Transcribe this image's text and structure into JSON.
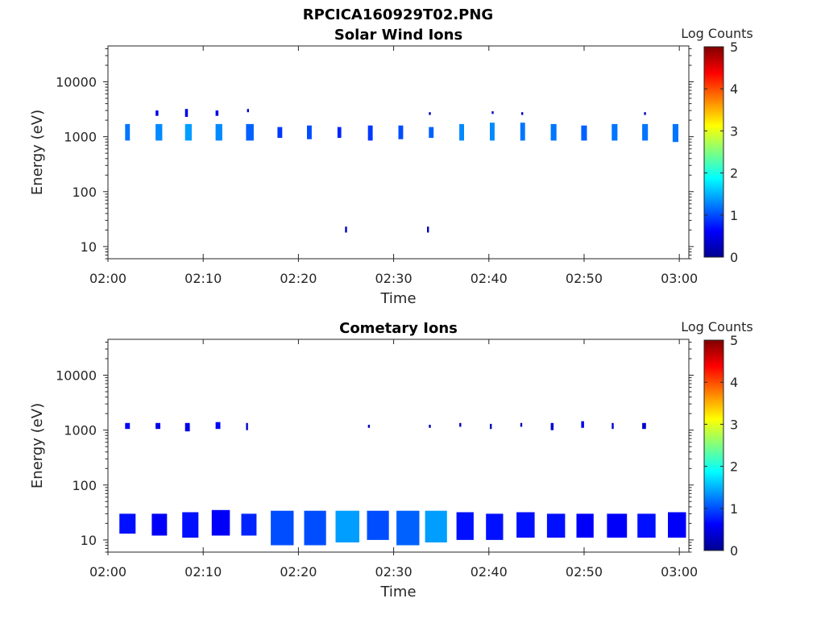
{
  "figure_title": "RPCICA160929T02.PNG",
  "chart_data": [
    {
      "type": "heatmap",
      "title": "Solar Wind Ions",
      "xlabel": "Time",
      "ylabel": "Energy (eV)",
      "x_ticks": [
        "02:00",
        "02:10",
        "02:20",
        "02:30",
        "02:40",
        "02:50",
        "03:00"
      ],
      "y_ticks": [
        "10",
        "100",
        "1000",
        "10000"
      ],
      "y_scale": "log",
      "xlim_minutes": [
        0,
        61
      ],
      "ylim": [
        6,
        45000
      ],
      "colorbar": {
        "label": "Log Counts",
        "ticks": [
          "0",
          "1",
          "2",
          "3",
          "4",
          "5"
        ],
        "range": [
          0,
          5
        ]
      },
      "cells": [
        {
          "t": 1.8,
          "dt": 0.5,
          "e0": 850,
          "e1": 1700,
          "v": 1.2
        },
        {
          "t": 5.0,
          "dt": 0.7,
          "e0": 850,
          "e1": 1700,
          "v": 1.3
        },
        {
          "t": 5.0,
          "dt": 0.3,
          "e0": 2400,
          "e1": 3000,
          "v": 0.5
        },
        {
          "t": 8.1,
          "dt": 0.7,
          "e0": 850,
          "e1": 1700,
          "v": 1.4
        },
        {
          "t": 8.1,
          "dt": 0.3,
          "e0": 2300,
          "e1": 3200,
          "v": 0.5
        },
        {
          "t": 11.3,
          "dt": 0.7,
          "e0": 850,
          "e1": 1700,
          "v": 1.3
        },
        {
          "t": 11.3,
          "dt": 0.3,
          "e0": 2400,
          "e1": 3000,
          "v": 0.5
        },
        {
          "t": 14.5,
          "dt": 0.8,
          "e0": 850,
          "e1": 1700,
          "v": 1.1
        },
        {
          "t": 14.6,
          "dt": 0.2,
          "e0": 2800,
          "e1": 3200,
          "v": 0.3
        },
        {
          "t": 17.8,
          "dt": 0.5,
          "e0": 950,
          "e1": 1500,
          "v": 0.9
        },
        {
          "t": 20.9,
          "dt": 0.5,
          "e0": 900,
          "e1": 1600,
          "v": 1.0
        },
        {
          "t": 24.1,
          "dt": 0.4,
          "e0": 950,
          "e1": 1500,
          "v": 0.8
        },
        {
          "t": 27.3,
          "dt": 0.5,
          "e0": 850,
          "e1": 1600,
          "v": 0.9
        },
        {
          "t": 30.5,
          "dt": 0.5,
          "e0": 900,
          "e1": 1600,
          "v": 1.0
        },
        {
          "t": 33.7,
          "dt": 0.5,
          "e0": 950,
          "e1": 1500,
          "v": 1.1
        },
        {
          "t": 33.7,
          "dt": 0.2,
          "e0": 2500,
          "e1": 2800,
          "v": 0.3
        },
        {
          "t": 36.9,
          "dt": 0.5,
          "e0": 850,
          "e1": 1700,
          "v": 1.3
        },
        {
          "t": 40.1,
          "dt": 0.5,
          "e0": 850,
          "e1": 1800,
          "v": 1.3
        },
        {
          "t": 40.3,
          "dt": 0.2,
          "e0": 2600,
          "e1": 2900,
          "v": 0.3
        },
        {
          "t": 43.3,
          "dt": 0.5,
          "e0": 850,
          "e1": 1800,
          "v": 1.2
        },
        {
          "t": 43.4,
          "dt": 0.2,
          "e0": 2500,
          "e1": 2800,
          "v": 0.3
        },
        {
          "t": 46.5,
          "dt": 0.6,
          "e0": 850,
          "e1": 1700,
          "v": 1.2
        },
        {
          "t": 49.7,
          "dt": 0.6,
          "e0": 850,
          "e1": 1600,
          "v": 1.1
        },
        {
          "t": 52.9,
          "dt": 0.6,
          "e0": 850,
          "e1": 1700,
          "v": 1.2
        },
        {
          "t": 56.1,
          "dt": 0.6,
          "e0": 850,
          "e1": 1700,
          "v": 1.2
        },
        {
          "t": 56.3,
          "dt": 0.2,
          "e0": 2500,
          "e1": 2800,
          "v": 0.3
        },
        {
          "t": 59.3,
          "dt": 0.6,
          "e0": 800,
          "e1": 1700,
          "v": 1.2
        },
        {
          "t": 24.9,
          "dt": 0.2,
          "e0": 18,
          "e1": 23,
          "v": 0.3
        },
        {
          "t": 33.5,
          "dt": 0.2,
          "e0": 18,
          "e1": 23,
          "v": 0.3
        }
      ]
    },
    {
      "type": "heatmap",
      "title": "Cometary Ions",
      "xlabel": "Time",
      "ylabel": "Energy (eV)",
      "x_ticks": [
        "02:00",
        "02:10",
        "02:20",
        "02:30",
        "02:40",
        "02:50",
        "03:00"
      ],
      "y_ticks": [
        "10",
        "100",
        "1000",
        "10000"
      ],
      "y_scale": "log",
      "xlim_minutes": [
        0,
        61
      ],
      "ylim": [
        6,
        45000
      ],
      "colorbar": {
        "label": "Log Counts",
        "ticks": [
          "0",
          "1",
          "2",
          "3",
          "4",
          "5"
        ],
        "range": [
          0,
          5
        ]
      },
      "cells": [
        {
          "t": 1.8,
          "dt": 0.5,
          "e0": 1050,
          "e1": 1350,
          "v": 0.6
        },
        {
          "t": 5.0,
          "dt": 0.5,
          "e0": 1050,
          "e1": 1350,
          "v": 0.5
        },
        {
          "t": 8.1,
          "dt": 0.5,
          "e0": 950,
          "e1": 1350,
          "v": 0.5
        },
        {
          "t": 11.3,
          "dt": 0.5,
          "e0": 1050,
          "e1": 1400,
          "v": 0.6
        },
        {
          "t": 14.5,
          "dt": 0.2,
          "e0": 1000,
          "e1": 1350,
          "v": 0.4
        },
        {
          "t": 27.3,
          "dt": 0.2,
          "e0": 1100,
          "e1": 1250,
          "v": 0.3
        },
        {
          "t": 33.7,
          "dt": 0.2,
          "e0": 1100,
          "e1": 1250,
          "v": 0.3
        },
        {
          "t": 36.9,
          "dt": 0.2,
          "e0": 1150,
          "e1": 1350,
          "v": 0.3
        },
        {
          "t": 40.1,
          "dt": 0.2,
          "e0": 1050,
          "e1": 1300,
          "v": 0.3
        },
        {
          "t": 43.3,
          "dt": 0.2,
          "e0": 1150,
          "e1": 1350,
          "v": 0.3
        },
        {
          "t": 46.5,
          "dt": 0.3,
          "e0": 1000,
          "e1": 1350,
          "v": 0.4
        },
        {
          "t": 49.7,
          "dt": 0.3,
          "e0": 1100,
          "e1": 1450,
          "v": 0.5
        },
        {
          "t": 52.9,
          "dt": 0.2,
          "e0": 1050,
          "e1": 1350,
          "v": 0.4
        },
        {
          "t": 56.1,
          "dt": 0.4,
          "e0": 1050,
          "e1": 1350,
          "v": 0.4
        },
        {
          "t": 1.2,
          "dt": 1.7,
          "e0": 13,
          "e1": 30,
          "v": 0.7
        },
        {
          "t": 4.6,
          "dt": 1.6,
          "e0": 12,
          "e1": 30,
          "v": 0.6
        },
        {
          "t": 7.8,
          "dt": 1.7,
          "e0": 11,
          "e1": 32,
          "v": 0.7
        },
        {
          "t": 10.9,
          "dt": 1.9,
          "e0": 12,
          "e1": 35,
          "v": 0.6
        },
        {
          "t": 14.0,
          "dt": 1.6,
          "e0": 12,
          "e1": 30,
          "v": 0.8
        },
        {
          "t": 17.1,
          "dt": 2.4,
          "e0": 8,
          "e1": 34,
          "v": 1.0
        },
        {
          "t": 20.6,
          "dt": 2.3,
          "e0": 8,
          "e1": 34,
          "v": 1.0
        },
        {
          "t": 23.9,
          "dt": 2.5,
          "e0": 9,
          "e1": 34,
          "v": 1.4
        },
        {
          "t": 27.2,
          "dt": 2.3,
          "e0": 10,
          "e1": 34,
          "v": 1.0
        },
        {
          "t": 30.3,
          "dt": 2.4,
          "e0": 8,
          "e1": 34,
          "v": 1.1
        },
        {
          "t": 33.3,
          "dt": 2.3,
          "e0": 9,
          "e1": 34,
          "v": 1.4
        },
        {
          "t": 36.6,
          "dt": 1.8,
          "e0": 10,
          "e1": 32,
          "v": 0.7
        },
        {
          "t": 39.7,
          "dt": 1.8,
          "e0": 10,
          "e1": 30,
          "v": 0.7
        },
        {
          "t": 42.9,
          "dt": 1.9,
          "e0": 11,
          "e1": 32,
          "v": 0.7
        },
        {
          "t": 46.1,
          "dt": 1.9,
          "e0": 11,
          "e1": 30,
          "v": 0.7
        },
        {
          "t": 49.2,
          "dt": 1.8,
          "e0": 11,
          "e1": 30,
          "v": 0.6
        },
        {
          "t": 52.4,
          "dt": 2.1,
          "e0": 11,
          "e1": 30,
          "v": 0.6
        },
        {
          "t": 55.6,
          "dt": 1.9,
          "e0": 11,
          "e1": 30,
          "v": 0.7
        },
        {
          "t": 58.8,
          "dt": 1.9,
          "e0": 11,
          "e1": 32,
          "v": 0.6
        }
      ]
    }
  ]
}
